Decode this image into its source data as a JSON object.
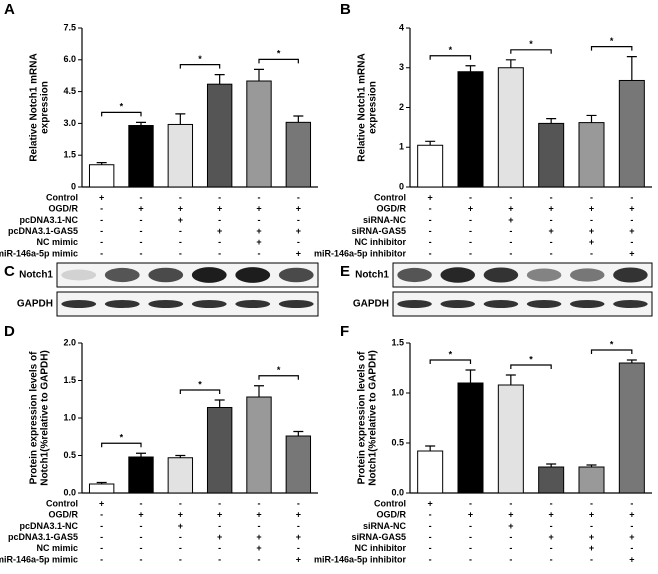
{
  "chart_data": [
    {
      "type": "bar",
      "panel": "A",
      "ylabel": [
        "Relative Notch1 mRNA",
        "expression"
      ],
      "ylim": [
        0,
        7.5
      ],
      "yticks": [
        0,
        1.5,
        {
          "value": 3,
          "label": "3.0"
        },
        4.5,
        {
          "value": 6,
          "label": "6.0"
        },
        7.5
      ],
      "values": [
        1.05,
        2.9,
        2.95,
        4.85,
        5.0,
        3.05
      ],
      "errors": [
        0.1,
        0.15,
        0.5,
        0.45,
        0.55,
        0.3
      ],
      "colors": [
        "#ffffff",
        "#000000",
        "#e2e2e2",
        "#555555",
        "#999999",
        "#777777"
      ],
      "annotations": [
        {
          "text": "*",
          "from": 0,
          "to": 1
        },
        {
          "text": "*",
          "from": 2,
          "to": 3
        },
        {
          "text": "*",
          "from": 4,
          "to": 5
        }
      ],
      "conditions": [
        {
          "label": "Control",
          "marks": [
            "+",
            "-",
            "-",
            "-",
            "-",
            "-"
          ]
        },
        {
          "label": "OGD/R",
          "marks": [
            "-",
            "+",
            "+",
            "+",
            "+",
            "+"
          ]
        },
        {
          "label": "pcDNA3.1-NC",
          "marks": [
            "-",
            "-",
            "+",
            "-",
            "-",
            "-"
          ]
        },
        {
          "label": "pcDNA3.1-GAS5",
          "marks": [
            "-",
            "-",
            "-",
            "+",
            "+",
            "+"
          ]
        },
        {
          "label": "NC mimic",
          "marks": [
            "-",
            "-",
            "-",
            "-",
            "+",
            "-"
          ]
        },
        {
          "label": "miR-146a-5p mimic",
          "marks": [
            "-",
            "-",
            "-",
            "-",
            "-",
            "+"
          ]
        }
      ]
    },
    {
      "type": "bar",
      "panel": "B",
      "ylabel": [
        "Relative Notch1 mRNA",
        "expression"
      ],
      "ylim": [
        0,
        4
      ],
      "yticks": [
        0,
        1,
        2,
        3,
        4
      ],
      "values": [
        1.05,
        2.9,
        3.0,
        1.6,
        1.62,
        2.68
      ],
      "errors": [
        0.1,
        0.15,
        0.2,
        0.12,
        0.18,
        0.6
      ],
      "colors": [
        "#ffffff",
        "#000000",
        "#e2e2e2",
        "#555555",
        "#999999",
        "#777777"
      ],
      "annotations": [
        {
          "text": "*",
          "from": 0,
          "to": 1
        },
        {
          "text": "*",
          "from": 2,
          "to": 3
        },
        {
          "text": "*",
          "from": 4,
          "to": 5
        }
      ],
      "conditions": [
        {
          "label": "Control",
          "marks": [
            "+",
            "-",
            "-",
            "-",
            "-",
            "-"
          ]
        },
        {
          "label": "OGD/R",
          "marks": [
            "-",
            "+",
            "+",
            "+",
            "+",
            "+"
          ]
        },
        {
          "label": "siRNA-NC",
          "marks": [
            "-",
            "-",
            "+",
            "-",
            "-",
            "-"
          ]
        },
        {
          "label": "siRNA-GAS5",
          "marks": [
            "-",
            "-",
            "-",
            "+",
            "+",
            "+"
          ]
        },
        {
          "label": "NC inhibitor",
          "marks": [
            "-",
            "-",
            "-",
            "-",
            "+",
            "-"
          ]
        },
        {
          "label": "miR-146a-5p inhibitor",
          "marks": [
            "-",
            "-",
            "-",
            "-",
            "-",
            "+"
          ]
        }
      ]
    },
    {
      "type": "bar",
      "panel": "D",
      "ylabel": [
        "Protein expression levels of",
        "Notch1(%relative to GAPDH)"
      ],
      "ylim": [
        0,
        2
      ],
      "yticks": [
        {
          "value": 0,
          "label": "0.0"
        },
        0.5,
        {
          "value": 1,
          "label": "1.0"
        },
        1.5,
        {
          "value": 2,
          "label": "2.0"
        }
      ],
      "values": [
        0.12,
        0.48,
        0.47,
        1.14,
        1.28,
        0.76
      ],
      "errors": [
        0.02,
        0.05,
        0.03,
        0.1,
        0.15,
        0.06
      ],
      "colors": [
        "#ffffff",
        "#000000",
        "#e2e2e2",
        "#555555",
        "#999999",
        "#777777"
      ],
      "annotations": [
        {
          "text": "*",
          "from": 0,
          "to": 1
        },
        {
          "text": "*",
          "from": 2,
          "to": 3
        },
        {
          "text": "*",
          "from": 4,
          "to": 5
        }
      ],
      "conditions": [
        {
          "label": "Control",
          "marks": [
            "+",
            "-",
            "-",
            "-",
            "-",
            "-"
          ]
        },
        {
          "label": "OGD/R",
          "marks": [
            "-",
            "+",
            "+",
            "+",
            "+",
            "+"
          ]
        },
        {
          "label": "pcDNA3.1-NC",
          "marks": [
            "-",
            "-",
            "+",
            "-",
            "-",
            "-"
          ]
        },
        {
          "label": "pcDNA3.1-GAS5",
          "marks": [
            "-",
            "-",
            "-",
            "+",
            "+",
            "+"
          ]
        },
        {
          "label": "NC mimic",
          "marks": [
            "-",
            "-",
            "-",
            "-",
            "+",
            "-"
          ]
        },
        {
          "label": "miR-146a-5p mimic",
          "marks": [
            "-",
            "-",
            "-",
            "-",
            "-",
            "+"
          ]
        }
      ]
    },
    {
      "type": "bar",
      "panel": "F",
      "ylabel": [
        "Protein expression levels of",
        "Notch1(%relative to GAPDH)"
      ],
      "ylim": [
        0,
        1.5
      ],
      "yticks": [
        {
          "value": 0,
          "label": "0.0"
        },
        0.5,
        {
          "value": 1,
          "label": "1.0"
        },
        1.5
      ],
      "values": [
        0.42,
        1.1,
        1.08,
        0.26,
        0.26,
        1.3
      ],
      "errors": [
        0.05,
        0.13,
        0.1,
        0.03,
        0.02,
        0.03
      ],
      "colors": [
        "#ffffff",
        "#000000",
        "#e2e2e2",
        "#555555",
        "#999999",
        "#777777"
      ],
      "annotations": [
        {
          "text": "*",
          "from": 0,
          "to": 1
        },
        {
          "text": "*",
          "from": 2,
          "to": 3
        },
        {
          "text": "*",
          "from": 4,
          "to": 5
        }
      ],
      "conditions": [
        {
          "label": "Control",
          "marks": [
            "+",
            "-",
            "-",
            "-",
            "-",
            "-"
          ]
        },
        {
          "label": "OGD/R",
          "marks": [
            "-",
            "+",
            "+",
            "+",
            "+",
            "+"
          ]
        },
        {
          "label": "siRNA-NC",
          "marks": [
            "-",
            "-",
            "+",
            "-",
            "-",
            "-"
          ]
        },
        {
          "label": "siRNA-GAS5",
          "marks": [
            "-",
            "-",
            "-",
            "+",
            "+",
            "+"
          ]
        },
        {
          "label": "NC inhibitor",
          "marks": [
            "-",
            "-",
            "-",
            "-",
            "+",
            "-"
          ]
        },
        {
          "label": "miR-146a-5p inhibitor",
          "marks": [
            "-",
            "-",
            "-",
            "-",
            "-",
            "+"
          ]
        }
      ]
    }
  ],
  "blots": [
    {
      "panel": "C",
      "rows": [
        "Notch1",
        "GAPDH"
      ]
    },
    {
      "panel": "E",
      "rows": [
        "Notch1",
        "GAPDH"
      ]
    }
  ]
}
